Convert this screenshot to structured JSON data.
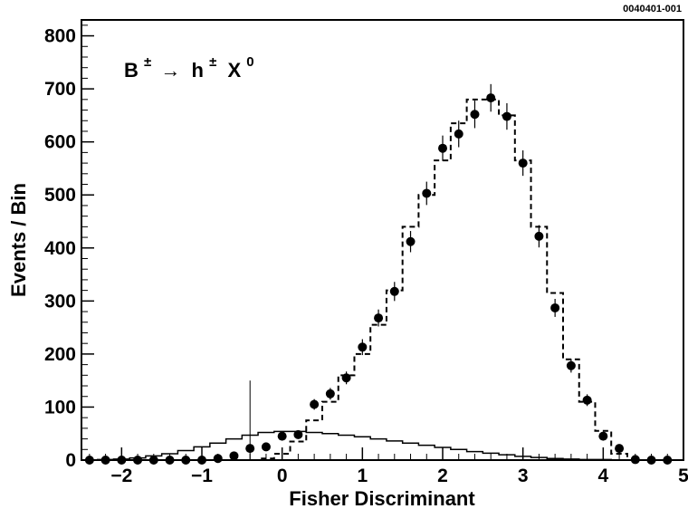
{
  "chart_data": {
    "type": "scatter",
    "reference_label": "0040401-001",
    "annotation": {
      "base": "B",
      "sup1": "±",
      "arrow": "→",
      "mid": "h",
      "sup2": "±",
      "tail": "X",
      "sup3": "0"
    },
    "xlabel": "Fisher Discriminant",
    "ylabel": "Events / Bin",
    "xlim": [
      -2.5,
      5.0
    ],
    "ylim": [
      0,
      830
    ],
    "x_ticks": [
      -2,
      -1,
      0,
      1,
      2,
      3,
      4,
      5
    ],
    "x_tick_labels": [
      "−2",
      "−1",
      "0",
      "1",
      "2",
      "3",
      "4",
      "5"
    ],
    "y_ticks": [
      0,
      100,
      200,
      300,
      400,
      500,
      600,
      700,
      800
    ],
    "y_tick_labels": [
      "0",
      "100",
      "200",
      "300",
      "400",
      "500",
      "600",
      "700",
      "800"
    ],
    "grid": false,
    "bin_edges": [
      -2.5,
      -2.3,
      -2.1,
      -1.9,
      -1.7,
      -1.5,
      -1.3,
      -1.1,
      -0.9,
      -0.7,
      -0.5,
      -0.3,
      -0.1,
      0.1,
      0.3,
      0.5,
      0.7,
      0.9,
      1.1,
      1.3,
      1.5,
      1.7,
      1.9,
      2.1,
      2.3,
      2.5,
      2.7,
      2.9,
      3.1,
      3.3,
      3.5,
      3.7,
      3.9,
      4.1,
      4.3,
      4.5,
      4.7,
      4.9
    ],
    "series": [
      {
        "style": "points-with-errors",
        "x": [
          -2.4,
          -2.2,
          -2.0,
          -1.8,
          -1.6,
          -1.4,
          -1.2,
          -1.0,
          -0.8,
          -0.6,
          -0.4,
          -0.2,
          0.0,
          0.2,
          0.4,
          0.6,
          0.8,
          1.0,
          1.2,
          1.4,
          1.6,
          1.8,
          2.0,
          2.2,
          2.4,
          2.6,
          2.8,
          3.0,
          3.2,
          3.4,
          3.6,
          3.8,
          4.0,
          4.2,
          4.4,
          4.6,
          4.8
        ],
        "values": [
          0,
          0,
          0,
          0,
          0,
          0,
          0,
          0,
          3,
          8,
          22,
          25,
          45,
          48,
          105,
          125,
          155,
          213,
          268,
          318,
          412,
          503,
          588,
          615,
          652,
          683,
          648,
          560,
          422,
          287,
          178,
          113,
          45,
          22,
          1,
          0,
          0
        ],
        "errors": [
          0,
          0,
          0,
          0,
          0,
          0,
          0,
          0,
          2,
          3,
          5,
          5,
          7,
          7,
          10,
          11,
          12,
          15,
          16,
          18,
          20,
          22,
          24,
          25,
          26,
          26,
          25,
          24,
          21,
          17,
          13,
          11,
          7,
          5,
          1,
          0,
          0
        ]
      },
      {
        "style": "dashed-histogram",
        "values": [
          0,
          0,
          0,
          0,
          0,
          0,
          0,
          0,
          0,
          0,
          0,
          3,
          12,
          35,
          75,
          110,
          160,
          200,
          255,
          320,
          440,
          500,
          565,
          635,
          680,
          680,
          650,
          565,
          440,
          315,
          190,
          110,
          55,
          12,
          0,
          0,
          0
        ]
      },
      {
        "style": "solid-histogram",
        "values": [
          0,
          1,
          2,
          4,
          8,
          12,
          18,
          25,
          32,
          40,
          47,
          52,
          54,
          54,
          52,
          50,
          47,
          44,
          40,
          36,
          32,
          28,
          24,
          20,
          16,
          13,
          10,
          7,
          5,
          3,
          2,
          1,
          1,
          0,
          0,
          0,
          0
        ]
      }
    ]
  }
}
